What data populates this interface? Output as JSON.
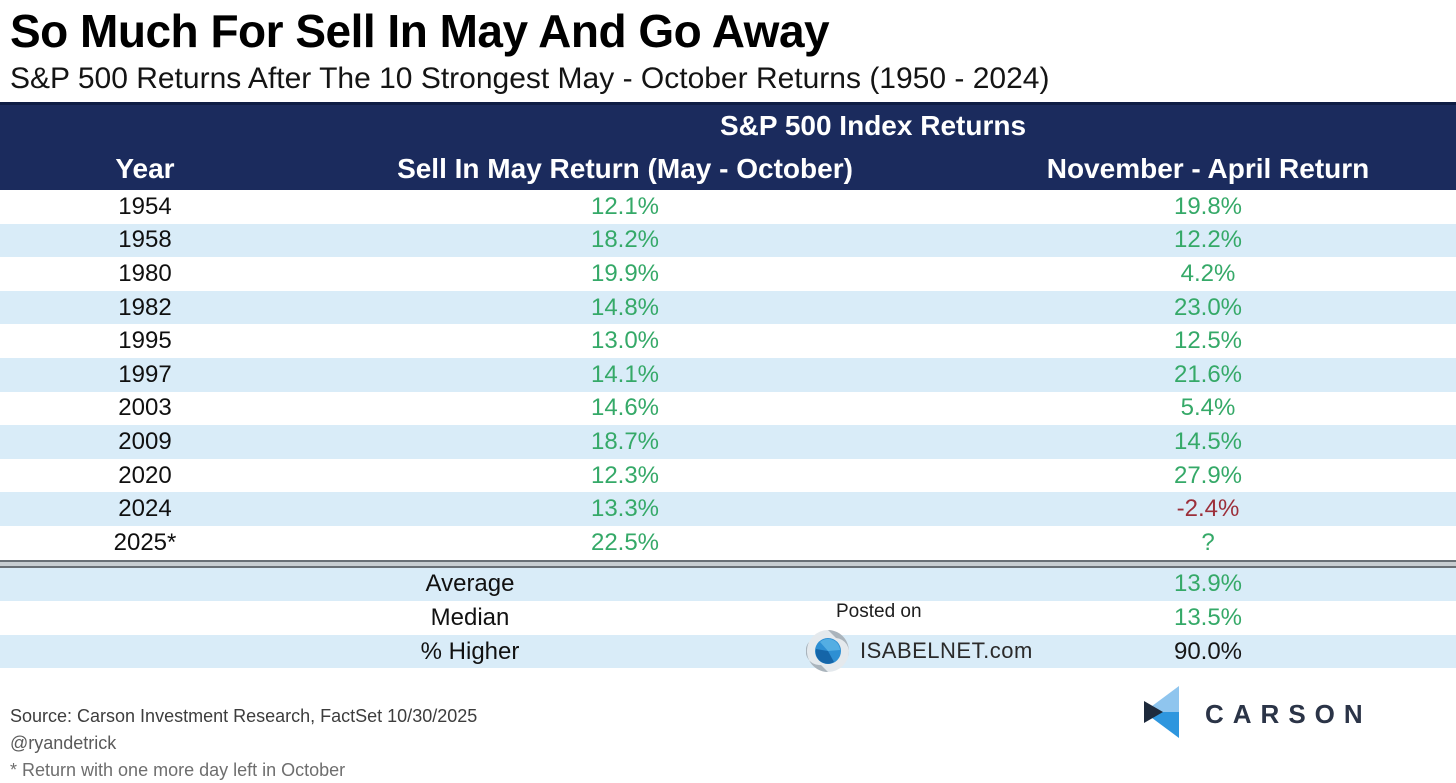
{
  "title": "So Much For Sell In May And Go Away",
  "subtitle": "S&P 500 Returns After The 10 Strongest May - October Returns (1950 - 2024)",
  "table": {
    "group_header": "S&P 500 Index Returns",
    "columns": {
      "year": "Year",
      "may_oct": "Sell In May Return (May - October)",
      "nov_apr": "November - April Return"
    },
    "rows": [
      {
        "year": "1954",
        "may_oct": "12.1%",
        "nov_apr": "19.8%",
        "nov_apr_color": "green"
      },
      {
        "year": "1958",
        "may_oct": "18.2%",
        "nov_apr": "12.2%",
        "nov_apr_color": "green"
      },
      {
        "year": "1980",
        "may_oct": "19.9%",
        "nov_apr": "4.2%",
        "nov_apr_color": "green"
      },
      {
        "year": "1982",
        "may_oct": "14.8%",
        "nov_apr": "23.0%",
        "nov_apr_color": "green"
      },
      {
        "year": "1995",
        "may_oct": "13.0%",
        "nov_apr": "12.5%",
        "nov_apr_color": "green"
      },
      {
        "year": "1997",
        "may_oct": "14.1%",
        "nov_apr": "21.6%",
        "nov_apr_color": "green"
      },
      {
        "year": "2003",
        "may_oct": "14.6%",
        "nov_apr": "5.4%",
        "nov_apr_color": "green"
      },
      {
        "year": "2009",
        "may_oct": "18.7%",
        "nov_apr": "14.5%",
        "nov_apr_color": "green"
      },
      {
        "year": "2020",
        "may_oct": "12.3%",
        "nov_apr": "27.9%",
        "nov_apr_color": "green"
      },
      {
        "year": "2024",
        "may_oct": "13.3%",
        "nov_apr": "-2.4%",
        "nov_apr_color": "red"
      },
      {
        "year": "2025*",
        "may_oct": "22.5%",
        "nov_apr": "?",
        "nov_apr_color": "green"
      }
    ],
    "summary": [
      {
        "label": "Average",
        "value": "13.9%",
        "value_color": "green"
      },
      {
        "label": "Median",
        "value": "13.5%",
        "value_color": "green"
      },
      {
        "label": "% Higher",
        "value": "90.0%",
        "value_color": "black"
      }
    ]
  },
  "watermark": {
    "posted_on": "Posted on",
    "site": "ISABELNET.com"
  },
  "footer": {
    "source": "Source: Carson Investment Research, FactSet 10/30/2025",
    "handle": "@ryandetrick",
    "footnote": "* Return with one more day left in October",
    "brand": "CARSON"
  },
  "icons": {
    "isabelnet_logo": "swirl-globe-icon",
    "carson_logo": "carson-chevron-icon"
  },
  "colors": {
    "header_navy": "#1b2b5d",
    "row_stripe_blue": "#d9ecf8",
    "positive_green": "#35a968",
    "negative_red": "#9c2f3a",
    "neutral_black": "#161616",
    "carson_light_blue": "#8fc5ee",
    "carson_mid_blue": "#2e96de",
    "carson_navy": "#1e2a3c"
  },
  "chart_data": {
    "type": "table",
    "title": "So Much For Sell In May And Go Away",
    "subtitle": "S&P 500 Returns After The 10 Strongest May - October Returns (1950 - 2024)",
    "group_header": "S&P 500 Index Returns",
    "columns": [
      "Year",
      "Sell In May Return (May - October)",
      "November - April Return"
    ],
    "rows": [
      {
        "year": "1954",
        "sell_in_may_return_pct": 12.1,
        "nov_apr_return_pct": 19.8
      },
      {
        "year": "1958",
        "sell_in_may_return_pct": 18.2,
        "nov_apr_return_pct": 12.2
      },
      {
        "year": "1980",
        "sell_in_may_return_pct": 19.9,
        "nov_apr_return_pct": 4.2
      },
      {
        "year": "1982",
        "sell_in_may_return_pct": 14.8,
        "nov_apr_return_pct": 23.0
      },
      {
        "year": "1995",
        "sell_in_may_return_pct": 13.0,
        "nov_apr_return_pct": 12.5
      },
      {
        "year": "1997",
        "sell_in_may_return_pct": 14.1,
        "nov_apr_return_pct": 21.6
      },
      {
        "year": "2003",
        "sell_in_may_return_pct": 14.6,
        "nov_apr_return_pct": 5.4
      },
      {
        "year": "2009",
        "sell_in_may_return_pct": 18.7,
        "nov_apr_return_pct": 14.5
      },
      {
        "year": "2020",
        "sell_in_may_return_pct": 12.3,
        "nov_apr_return_pct": 27.9
      },
      {
        "year": "2024",
        "sell_in_may_return_pct": 13.3,
        "nov_apr_return_pct": -2.4
      },
      {
        "year": "2025*",
        "sell_in_may_return_pct": 22.5,
        "nov_apr_return_pct": null
      }
    ],
    "summary": {
      "average_pct": 13.9,
      "median_pct": 13.5,
      "percent_higher": 90.0
    }
  }
}
